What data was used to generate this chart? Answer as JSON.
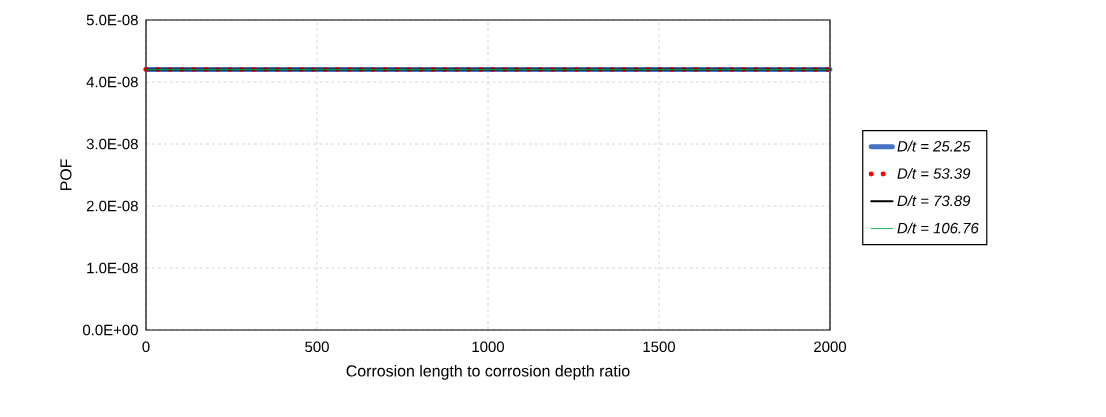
{
  "chart_data": {
    "type": "line",
    "xlabel": "Corrosion length to corrosion depth ratio",
    "ylabel": "POF",
    "x": [
      0,
      2000
    ],
    "series": [
      {
        "name": "D/t = 25.25",
        "color": "#4472c4",
        "line_style": "solid",
        "values": [
          4.2e-08,
          4.2e-08
        ]
      },
      {
        "name": "D/t = 53.39",
        "color": "#ff0000",
        "line_style": "dotted",
        "values": [
          4.2e-08,
          4.2e-08
        ]
      },
      {
        "name": "D/t = 73.89",
        "color": "#000000",
        "line_style": "solid",
        "values": [
          4.2e-08,
          4.2e-08
        ]
      },
      {
        "name": "D/t = 106.76",
        "color": "#00b050",
        "line_style": "solid",
        "values": [
          4.2e-08,
          4.2e-08
        ]
      }
    ],
    "xlim": [
      0,
      2000
    ],
    "xticks": [
      0,
      500,
      1000,
      1500,
      2000
    ],
    "ylim": [
      0,
      5e-08
    ],
    "yticks": [
      {
        "value": 0,
        "label": "0.0E+00"
      },
      {
        "value": 1e-08,
        "label": "1.0E-08"
      },
      {
        "value": 2e-08,
        "label": "2.0E-08"
      },
      {
        "value": 3e-08,
        "label": "3.0E-08"
      },
      {
        "value": 4e-08,
        "label": "4.0E-08"
      },
      {
        "value": 5e-08,
        "label": "5.0E-08"
      }
    ],
    "grid": true,
    "legend": "right",
    "marker": "none"
  }
}
